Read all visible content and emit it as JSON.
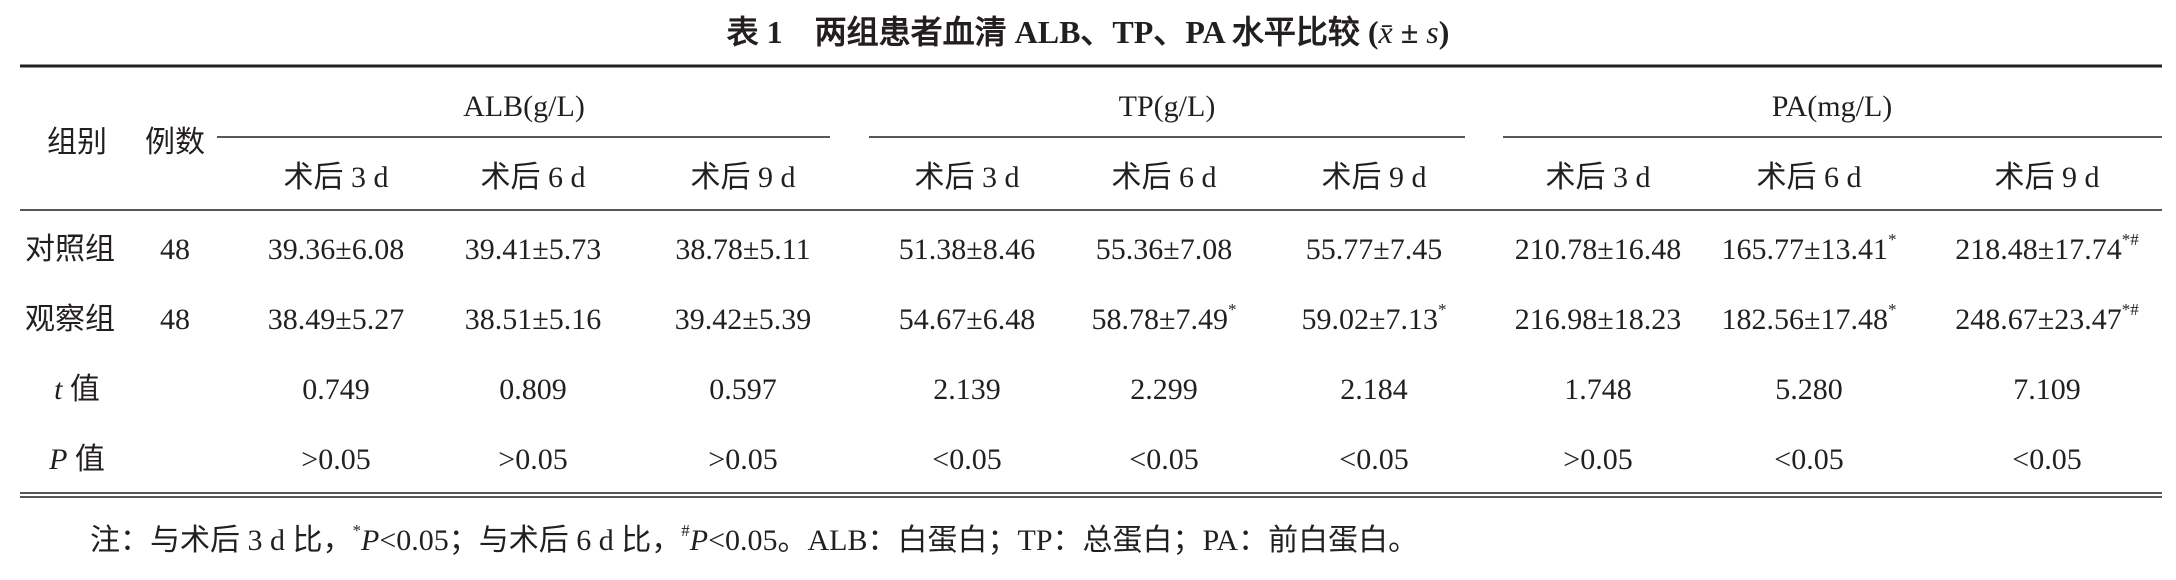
{
  "title": [
    {
      "text": "表 1　两组患者血清 ALB、TP、PA 水平比较 ("
    },
    {
      "italic": "x̄"
    },
    {
      "text": " ± "
    },
    {
      "italic": "s"
    },
    {
      "text": ")"
    }
  ],
  "table": {
    "header": {
      "group": "组别",
      "count": "例数",
      "measures": [
        "ALB(g/L)",
        "TP(g/L)",
        "PA(mg/L)"
      ],
      "times": [
        "术后 3 d",
        "术后 6 d",
        "术后 9 d",
        "术后 3 d",
        "术后 6 d",
        "术后 9 d",
        "术后 3 d",
        "术后 6 d",
        "术后 9 d"
      ]
    },
    "rows": [
      {
        "label": "对照组",
        "count": "48",
        "cells": [
          "39.36±6.08",
          "39.41±5.73",
          "38.78±5.11",
          "51.38±8.46",
          "55.36±7.08",
          "55.77±7.45",
          "210.78±16.48",
          {
            "text": "165.77±13.41",
            "sup": "*"
          },
          {
            "text": "218.48±17.74",
            "sup": "*#"
          }
        ]
      },
      {
        "label": "观察组",
        "count": "48",
        "cells": [
          "38.49±5.27",
          "38.51±5.16",
          "39.42±5.39",
          "54.67±6.48",
          {
            "text": "58.78±7.49",
            "sup": "*"
          },
          {
            "text": "59.02±7.13",
            "sup": "*"
          },
          "216.98±18.23",
          {
            "text": "182.56±17.48",
            "sup": "*"
          },
          {
            "text": "248.67±23.47",
            "sup": "*#"
          }
        ]
      },
      {
        "label": [
          {
            "italic": "t"
          },
          {
            "text": " 值"
          }
        ],
        "cells": [
          "0.749",
          "0.809",
          "0.597",
          "2.139",
          "2.299",
          "2.184",
          "1.748",
          "5.280",
          "7.109"
        ]
      },
      {
        "label": [
          {
            "italic": "P"
          },
          {
            "text": " 值"
          }
        ],
        "cells": [
          ">0.05",
          ">0.05",
          ">0.05",
          "<0.05",
          "<0.05",
          "<0.05",
          ">0.05",
          "<0.05",
          "<0.05"
        ]
      }
    ]
  },
  "note": [
    {
      "text": "注：与术后 3 d 比，"
    },
    {
      "sup": "*"
    },
    {
      "italic": "P"
    },
    {
      "text": "<0.05；与术后 6 d 比，"
    },
    {
      "sup": "#"
    },
    {
      "italic": "P"
    },
    {
      "text": "<0.05。ALB：白蛋白；TP：总蛋白；PA：前白蛋白。"
    }
  ]
}
